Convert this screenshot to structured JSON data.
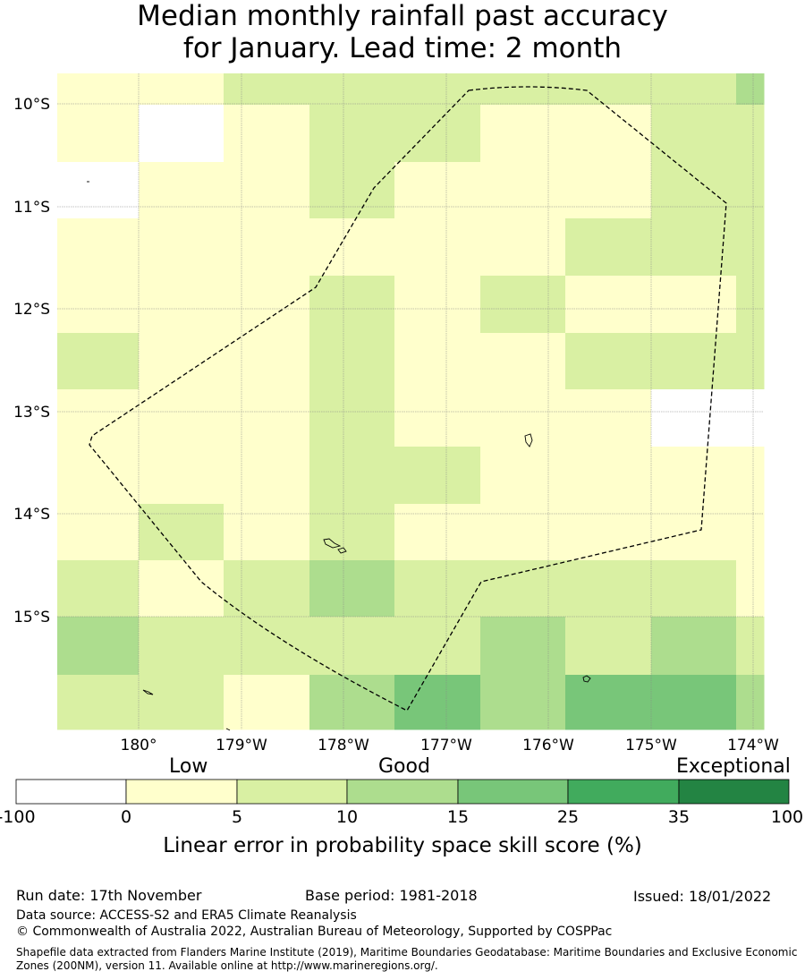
{
  "title": {
    "line1": "Median monthly rainfall past accuracy",
    "line2": "for January. Lead time: 2 month"
  },
  "map": {
    "lat_labels": [
      "10°S",
      "11°S",
      "12°S",
      "13°S",
      "14°S",
      "15°S"
    ],
    "lon_labels": [
      "180°",
      "179°W",
      "178°W",
      "177°W",
      "176°W",
      "175°W",
      "174°W"
    ],
    "grid": [
      [
        1,
        1,
        2,
        2,
        2,
        2,
        2,
        2,
        3
      ],
      [
        1,
        0,
        1,
        2,
        2,
        1,
        1,
        2,
        2
      ],
      [
        0,
        1,
        1,
        2,
        1,
        1,
        1,
        2,
        2
      ],
      [
        1,
        1,
        1,
        1,
        1,
        1,
        2,
        2,
        2
      ],
      [
        1,
        1,
        1,
        2,
        1,
        2,
        1,
        1,
        2
      ],
      [
        2,
        1,
        1,
        2,
        1,
        1,
        2,
        2,
        2
      ],
      [
        1,
        1,
        1,
        2,
        1,
        1,
        1,
        0,
        0
      ],
      [
        1,
        1,
        1,
        2,
        2,
        1,
        1,
        1,
        1
      ],
      [
        1,
        2,
        1,
        2,
        1,
        1,
        1,
        1,
        1
      ],
      [
        2,
        1,
        2,
        3,
        2,
        2,
        2,
        2,
        1
      ],
      [
        3,
        2,
        2,
        2,
        2,
        3,
        2,
        3,
        2
      ],
      [
        2,
        2,
        1,
        3,
        4,
        3,
        4,
        4,
        3
      ]
    ]
  },
  "colorbar": {
    "words": [
      "Low",
      "Good",
      "Exceptional"
    ],
    "ticks": [
      "-100",
      "0",
      "5",
      "10",
      "15",
      "25",
      "35",
      "100"
    ],
    "colors": [
      "#ffffff",
      "#ffffcc",
      "#d9f0a3",
      "#addd8e",
      "#78c679",
      "#41ab5d",
      "#238443"
    ],
    "label": "Linear error in probability space skill score (%)"
  },
  "footer": {
    "run_date": "Run date: 17th November",
    "base_period": "Base period: 1981-2018",
    "issued": "Issued: 18/01/2022",
    "data_source": "Data source: ACCESS-S2 and ERA5 Climate Reanalysis",
    "copyright": "© Commonwealth of Australia 2022, Australian Bureau of Meteorology, Supported by COSPPac",
    "shapefile": "Shapefile data extracted from Flanders Marine Institute (2019), Maritime Boundaries Geodatabase: Maritime Boundaries and Exclusive Economic Zones (200NM), version 11. Available online at http://www.marineregions.org/."
  }
}
